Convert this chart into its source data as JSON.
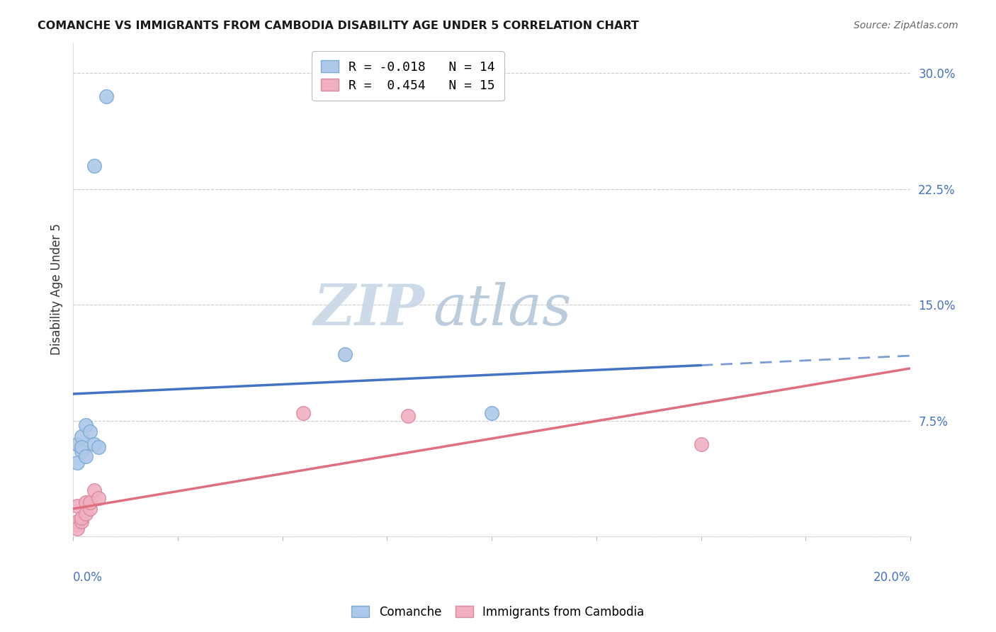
{
  "title": "COMANCHE VS IMMIGRANTS FROM CAMBODIA DISABILITY AGE UNDER 5 CORRELATION CHART",
  "source": "Source: ZipAtlas.com",
  "ylabel": "Disability Age Under 5",
  "ytick_values": [
    0.0,
    0.075,
    0.15,
    0.225,
    0.3
  ],
  "xlim": [
    0.0,
    0.2
  ],
  "ylim": [
    0.0,
    0.32
  ],
  "legend_line1": "R = -0.018   N = 14",
  "legend_line2": "R =  0.454   N = 15",
  "comanche_points": [
    [
      0.008,
      0.285
    ],
    [
      0.005,
      0.24
    ],
    [
      0.001,
      0.06
    ],
    [
      0.002,
      0.055
    ],
    [
      0.001,
      0.048
    ],
    [
      0.002,
      0.065
    ],
    [
      0.002,
      0.058
    ],
    [
      0.003,
      0.052
    ],
    [
      0.003,
      0.072
    ],
    [
      0.004,
      0.068
    ],
    [
      0.005,
      0.06
    ],
    [
      0.006,
      0.058
    ],
    [
      0.065,
      0.118
    ],
    [
      0.1,
      0.08
    ]
  ],
  "cambodia_points": [
    [
      0.001,
      0.008
    ],
    [
      0.001,
      0.02
    ],
    [
      0.001,
      0.01
    ],
    [
      0.001,
      0.005
    ],
    [
      0.002,
      0.01
    ],
    [
      0.002,
      0.012
    ],
    [
      0.003,
      0.022
    ],
    [
      0.003,
      0.015
    ],
    [
      0.004,
      0.018
    ],
    [
      0.004,
      0.022
    ],
    [
      0.005,
      0.03
    ],
    [
      0.006,
      0.025
    ],
    [
      0.055,
      0.08
    ],
    [
      0.08,
      0.078
    ],
    [
      0.15,
      0.06
    ]
  ],
  "comanche_line_color": "#4472c4",
  "cambodia_line_color": "#e07080",
  "comanche_scatter_facecolor": "#adc8e8",
  "comanche_scatter_edgecolor": "#7aaad4",
  "cambodia_scatter_facecolor": "#f0b0c0",
  "cambodia_scatter_edgecolor": "#d888a0",
  "background_color": "#ffffff",
  "grid_color": "#cccccc",
  "watermark_zip_color": "#c8d8e8",
  "watermark_atlas_color": "#b0c8d8",
  "title_color": "#1a1a1a",
  "tick_label_color": "#4472c4",
  "ylabel_color": "#333333"
}
